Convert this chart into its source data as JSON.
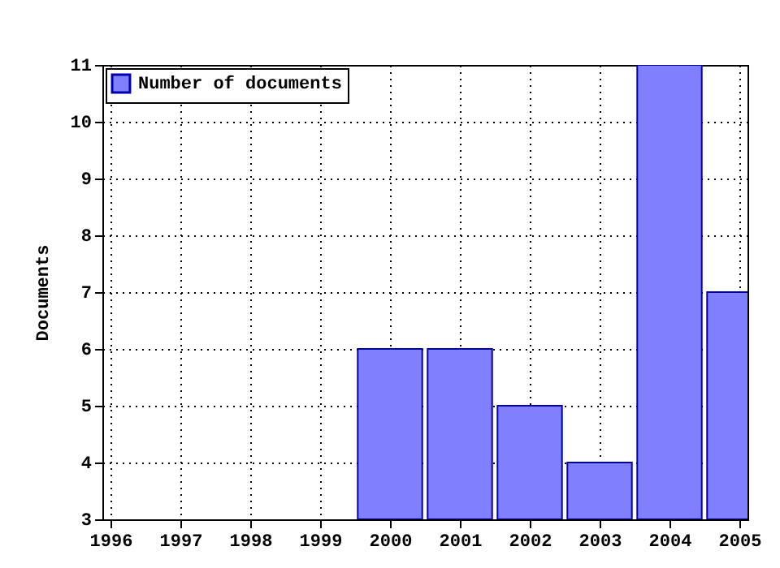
{
  "chart_data": {
    "type": "bar",
    "ylabel": "Documents",
    "x": [
      2000,
      2001,
      2002,
      2003,
      2004,
      2005
    ],
    "series": [
      {
        "name": "Number of documents",
        "color": "#8080ff",
        "values": [
          6,
          6,
          5,
          4,
          11,
          7
        ]
      }
    ],
    "xlim": [
      1996,
      2005
    ],
    "xticks": [
      1996,
      1997,
      1998,
      1999,
      2000,
      2001,
      2002,
      2003,
      2004,
      2005
    ],
    "ylim": [
      3,
      11
    ],
    "yticks": [
      3,
      4,
      5,
      6,
      7,
      8,
      9,
      10,
      11
    ],
    "grid": true,
    "legend": "top left"
  }
}
